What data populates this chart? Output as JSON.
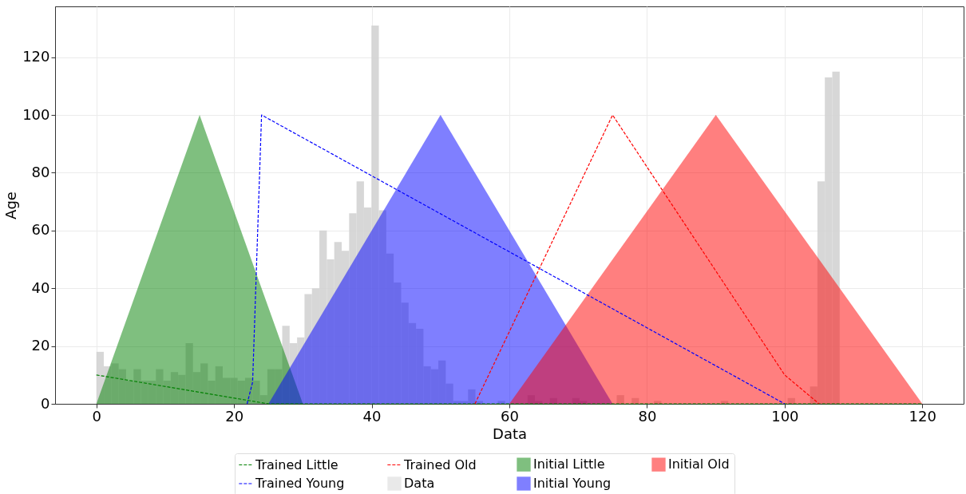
{
  "chart_data": {
    "type": "area",
    "xlabel": "Data",
    "ylabel": "Age",
    "xlim": [
      -6,
      126
    ],
    "ylim": [
      0,
      137.6
    ],
    "xticks": [
      0,
      20,
      40,
      60,
      80,
      100,
      120
    ],
    "yticks": [
      0,
      20,
      40,
      60,
      80,
      100,
      120
    ],
    "grid": true,
    "legend": "bottom",
    "marker": "none",
    "series": [
      {
        "name": "Trained Little",
        "type": "line",
        "line_style": "dashed",
        "color": "#008000",
        "x": [
          0,
          25,
          120
        ],
        "values": [
          10,
          0,
          0
        ]
      },
      {
        "name": "Trained Young",
        "type": "line",
        "line_style": "dashed",
        "color": "#0000ff",
        "x": [
          21.9,
          22.7,
          24,
          100
        ],
        "values": [
          0,
          7.5,
          100,
          0
        ]
      },
      {
        "name": "Trained Old",
        "type": "line",
        "line_style": "dashed",
        "color": "#ff0000",
        "x": [
          55,
          75,
          100,
          105
        ],
        "values": [
          0,
          100,
          10,
          0
        ]
      },
      {
        "name": "Data",
        "type": "histogram",
        "color": "#d3d3d3",
        "bins": [
          0,
          1.08,
          2.16,
          3.24,
          4.32,
          5.4,
          6.48,
          7.56,
          8.64,
          9.72,
          10.8,
          11.88,
          12.96,
          14.04,
          15.12,
          16.2,
          17.28,
          18.36,
          19.44,
          20.52,
          21.6,
          22.68,
          23.76,
          24.84,
          25.92,
          27,
          28.08,
          29.16,
          30.24,
          31.32,
          32.4,
          33.48,
          34.56,
          35.64,
          36.72,
          37.8,
          38.88,
          39.96,
          41.04,
          42.12,
          43.2,
          44.28,
          45.36,
          46.44,
          47.52,
          48.6,
          49.68,
          50.76,
          51.84,
          52.92,
          54,
          55.08,
          56.16,
          57.24,
          58.32,
          59.4,
          60.48,
          61.56,
          62.64,
          63.72,
          64.8,
          65.88,
          66.96,
          68.04,
          69.12,
          70.2,
          71.28,
          72.36,
          73.44,
          74.52,
          75.6,
          76.68,
          77.76,
          78.84,
          79.92,
          81,
          82.08,
          83.16,
          84.24,
          85.32,
          86.4,
          87.48,
          88.56,
          89.64,
          90.72,
          91.8,
          92.88,
          93.96,
          95.04,
          96.12,
          97.2,
          98.28,
          99.36,
          100.44,
          101.52,
          102.6,
          103.68,
          104.76,
          105.84,
          106.92,
          108
        ],
        "values": [
          18,
          13,
          14,
          12,
          8,
          12,
          8,
          8,
          12,
          8,
          11,
          10,
          21,
          11,
          14,
          8,
          13,
          9,
          9,
          8,
          9,
          8,
          3,
          12,
          12,
          27,
          21,
          23,
          38,
          40,
          60,
          50,
          56,
          53,
          66,
          77,
          68,
          131,
          67,
          52,
          42,
          35,
          28,
          26,
          13,
          12,
          15,
          7,
          1,
          1,
          5,
          1,
          0,
          0,
          1,
          0,
          0,
          0,
          3,
          1,
          0,
          2,
          0,
          0,
          2,
          1,
          0,
          0,
          0,
          0,
          3,
          0,
          2,
          0,
          0,
          1,
          0,
          0,
          0,
          0,
          0,
          0,
          0,
          0,
          1,
          0,
          0,
          0,
          0,
          0,
          0,
          0,
          0,
          2,
          0,
          0,
          6,
          77,
          113,
          115
        ]
      },
      {
        "name": "Initial Little",
        "color": "#008000",
        "x": [
          0,
          15,
          30
        ],
        "values": [
          0,
          100,
          0
        ]
      },
      {
        "name": "Initial Young",
        "color": "#0000ff",
        "x": [
          25,
          50,
          75
        ],
        "values": [
          0,
          100,
          0
        ]
      },
      {
        "name": "Initial Old",
        "color": "#ff0000",
        "x": [
          60,
          90,
          120
        ],
        "values": [
          0,
          100,
          0
        ]
      }
    ]
  }
}
